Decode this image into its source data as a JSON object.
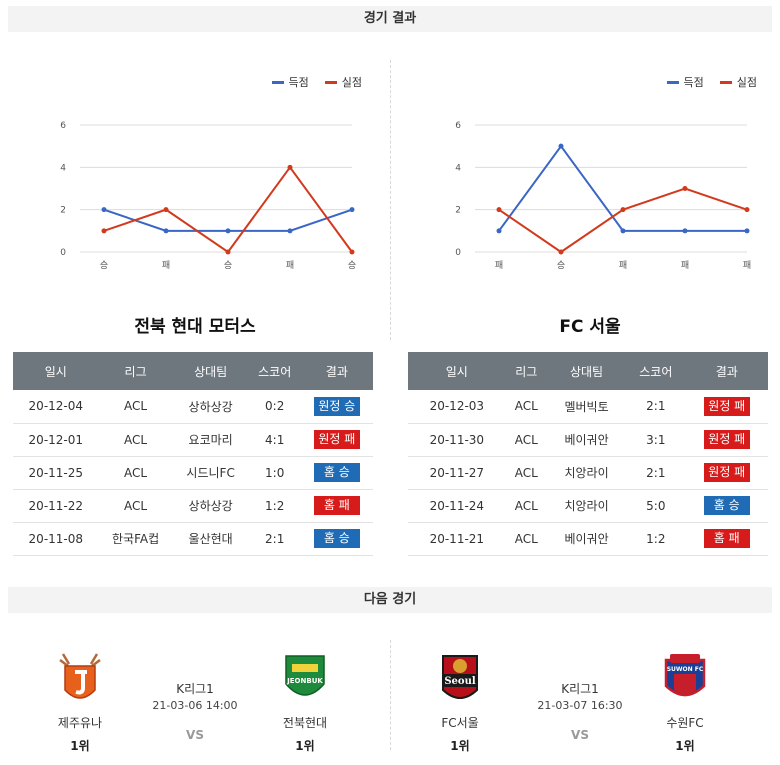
{
  "sections": {
    "results_title": "경기 결과",
    "next_title": "다음 경기"
  },
  "colors": {
    "scored": "#3a66c4",
    "conceded": "#d13a1c",
    "win_badge": "#1f6bb5",
    "loss_badge": "#d71a1a"
  },
  "legend": {
    "scored": "득점",
    "conceded": "실점"
  },
  "table_headers": [
    "일시",
    "리그",
    "상대팀",
    "스코어",
    "결과"
  ],
  "chart_data": [
    {
      "type": "line",
      "categories": [
        "승",
        "패",
        "승",
        "패",
        "승"
      ],
      "ylim": [
        0,
        6
      ],
      "yticks": [
        "0",
        "2",
        "4",
        "6"
      ],
      "legend_position": "top-right",
      "grid": true,
      "series": [
        {
          "name": "득점",
          "values": [
            2,
            1,
            1,
            1,
            2
          ]
        },
        {
          "name": "실점",
          "values": [
            1,
            2,
            0,
            4,
            0
          ]
        }
      ]
    },
    {
      "type": "line",
      "categories": [
        "패",
        "승",
        "패",
        "패",
        "패"
      ],
      "ylim": [
        0,
        6
      ],
      "yticks": [
        "0",
        "2",
        "4",
        "6"
      ],
      "legend_position": "top-right",
      "grid": true,
      "series": [
        {
          "name": "득점",
          "values": [
            1,
            5,
            1,
            1,
            1
          ]
        },
        {
          "name": "실점",
          "values": [
            2,
            0,
            2,
            3,
            2
          ]
        }
      ]
    }
  ],
  "teams": [
    {
      "name": "전북 현대 모터스",
      "rows": [
        {
          "date": "20-12-04",
          "league": "ACL",
          "opponent": "상하상강",
          "score": "0:2",
          "result": "원정 승",
          "outcome": "win"
        },
        {
          "date": "20-12-01",
          "league": "ACL",
          "opponent": "요코마리",
          "score": "4:1",
          "result": "원정 패",
          "outcome": "loss"
        },
        {
          "date": "20-11-25",
          "league": "ACL",
          "opponent": "시드니FC",
          "score": "1:0",
          "result": "홈 승",
          "outcome": "win"
        },
        {
          "date": "20-11-22",
          "league": "ACL",
          "opponent": "상하상강",
          "score": "1:2",
          "result": "홈 패",
          "outcome": "loss"
        },
        {
          "date": "20-11-08",
          "league": "한국FA컵",
          "opponent": "울산현대",
          "score": "2:1",
          "result": "홈 승",
          "outcome": "win"
        }
      ]
    },
    {
      "name": "FC 서울",
      "rows": [
        {
          "date": "20-12-03",
          "league": "ACL",
          "opponent": "멜버빅토",
          "score": "2:1",
          "result": "원정 패",
          "outcome": "loss"
        },
        {
          "date": "20-11-30",
          "league": "ACL",
          "opponent": "베이궈안",
          "score": "3:1",
          "result": "원정 패",
          "outcome": "loss"
        },
        {
          "date": "20-11-27",
          "league": "ACL",
          "opponent": "치앙라이",
          "score": "2:1",
          "result": "원정 패",
          "outcome": "loss"
        },
        {
          "date": "20-11-24",
          "league": "ACL",
          "opponent": "치앙라이",
          "score": "5:0",
          "result": "홈 승",
          "outcome": "win"
        },
        {
          "date": "20-11-21",
          "league": "ACL",
          "opponent": "베이궈안",
          "score": "1:2",
          "result": "홈 패",
          "outcome": "loss"
        }
      ]
    }
  ],
  "next_matches": [
    {
      "league": "K리그1",
      "datetime": "21-03-06 14:00",
      "vs": "VS",
      "home": {
        "name": "제주유나",
        "rank": "1위",
        "logo": "jeju-logo"
      },
      "away": {
        "name": "전북현대",
        "rank": "1위",
        "logo": "jeonbuk-logo",
        "logo_text": "JEONBUK"
      }
    },
    {
      "league": "K리그1",
      "datetime": "21-03-07 16:30",
      "vs": "VS",
      "home": {
        "name": "FC서울",
        "rank": "1위",
        "logo": "fcseoul-logo",
        "logo_text": "Seoul"
      },
      "away": {
        "name": "수원FC",
        "rank": "1위",
        "logo": "suwon-logo",
        "logo_text": "SUWON FC"
      }
    }
  ]
}
